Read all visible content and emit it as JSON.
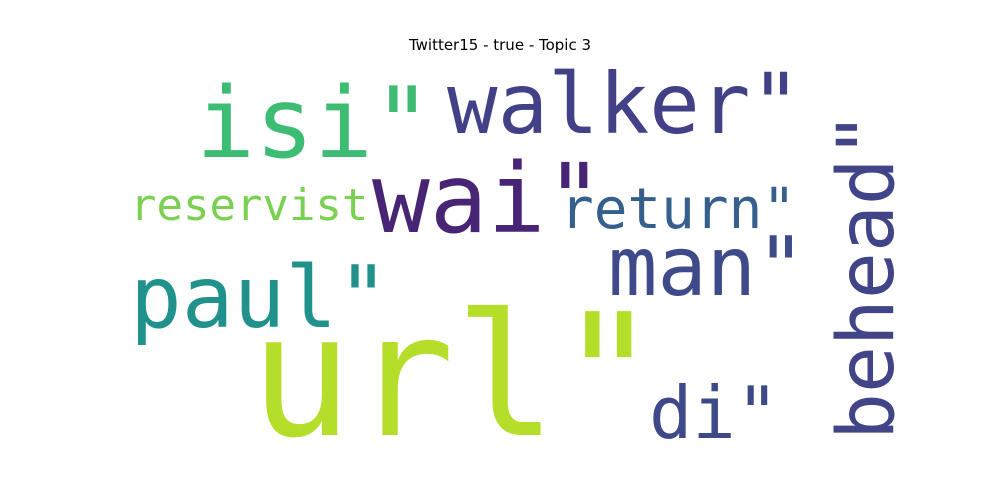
{
  "chart_data": {
    "type": "wordcloud",
    "title": "Twitter15 - true - Topic 3",
    "words": [
      {
        "text": "url\"",
        "weight": 1.0,
        "color": "#b5de2b",
        "orientation": "horizontal"
      },
      {
        "text": "wai\"",
        "weight": 0.82,
        "color": "#482475",
        "orientation": "horizontal"
      },
      {
        "text": "isi\"",
        "weight": 0.72,
        "color": "#3dbc74",
        "orientation": "horizontal"
      },
      {
        "text": "walker\"",
        "weight": 0.66,
        "color": "#424086",
        "orientation": "horizontal"
      },
      {
        "text": "paul\"",
        "weight": 0.64,
        "color": "#21918c",
        "orientation": "horizontal"
      },
      {
        "text": "man\"",
        "weight": 0.62,
        "color": "#3e4a89",
        "orientation": "horizontal"
      },
      {
        "text": "di\"",
        "weight": 0.56,
        "color": "#3e4989",
        "orientation": "horizontal"
      },
      {
        "text": "behead\"",
        "weight": 0.54,
        "color": "#414487",
        "orientation": "vertical"
      },
      {
        "text": "return\"",
        "weight": 0.44,
        "color": "#355f8d",
        "orientation": "horizontal"
      },
      {
        "text": "reservist",
        "weight": 0.36,
        "color": "#7ad151",
        "orientation": "horizontal"
      }
    ]
  }
}
